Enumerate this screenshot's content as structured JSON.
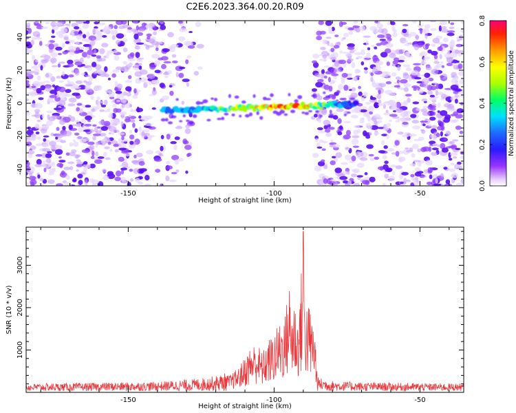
{
  "figure": {
    "title": "C2E6.2023.364.00.20.R09"
  },
  "chart_data": [
    {
      "type": "heatmap",
      "xlabel": "Height of straight line (km)",
      "ylabel": "Frequency (Hz)",
      "xlim": [
        -185,
        -35
      ],
      "ylim": [
        -50,
        50
      ],
      "x_ticks": [
        -150,
        -100,
        -50
      ],
      "y_ticks": [
        -40,
        -20,
        0,
        20,
        40
      ],
      "colorbar": {
        "label": "Normalized spectral amplitude",
        "range": [
          0.0,
          0.8
        ],
        "ticks": [
          0.0,
          0.2,
          0.4,
          0.6,
          0.8
        ]
      },
      "signal_band": {
        "x_range": [
          -138,
          -72
        ],
        "frequency_start": -4.5,
        "frequency_end": -0.5,
        "peak_height_km": -94,
        "peak_amplitude": 0.8,
        "noise_free_gap_km": [
          -124,
          -87
        ]
      }
    },
    {
      "type": "line",
      "xlabel": "Height of straight line (km)",
      "ylabel": "SNR (10 * v/v)",
      "xlim": [
        -185,
        -35
      ],
      "ylim": [
        0,
        3900
      ],
      "x_ticks": [
        -150,
        -100,
        -50
      ],
      "y_ticks": [
        1000,
        2000,
        3000
      ],
      "color": "#e8383c",
      "series": [
        {
          "x": [
            -185,
            -170,
            -160,
            -150,
            -140,
            -130,
            -125,
            -120,
            -115,
            -112,
            -110,
            -108,
            -106,
            -104,
            -102,
            -100,
            -98,
            -96,
            -95,
            -94,
            -93,
            -92,
            -91,
            -90.5,
            -90,
            -89.5,
            -89,
            -88,
            -87,
            -86,
            -85.5,
            -85,
            -80,
            -70,
            -60,
            -50,
            -35
          ],
          "y": [
            160,
            170,
            180,
            190,
            200,
            250,
            280,
            330,
            420,
            600,
            850,
            1100,
            1200,
            950,
            1250,
            1400,
            1700,
            1900,
            2750,
            2100,
            2300,
            1800,
            2400,
            3150,
            3900,
            2800,
            2200,
            2100,
            1800,
            1600,
            700,
            300,
            220,
            190,
            180,
            170,
            165
          ]
        }
      ]
    }
  ]
}
